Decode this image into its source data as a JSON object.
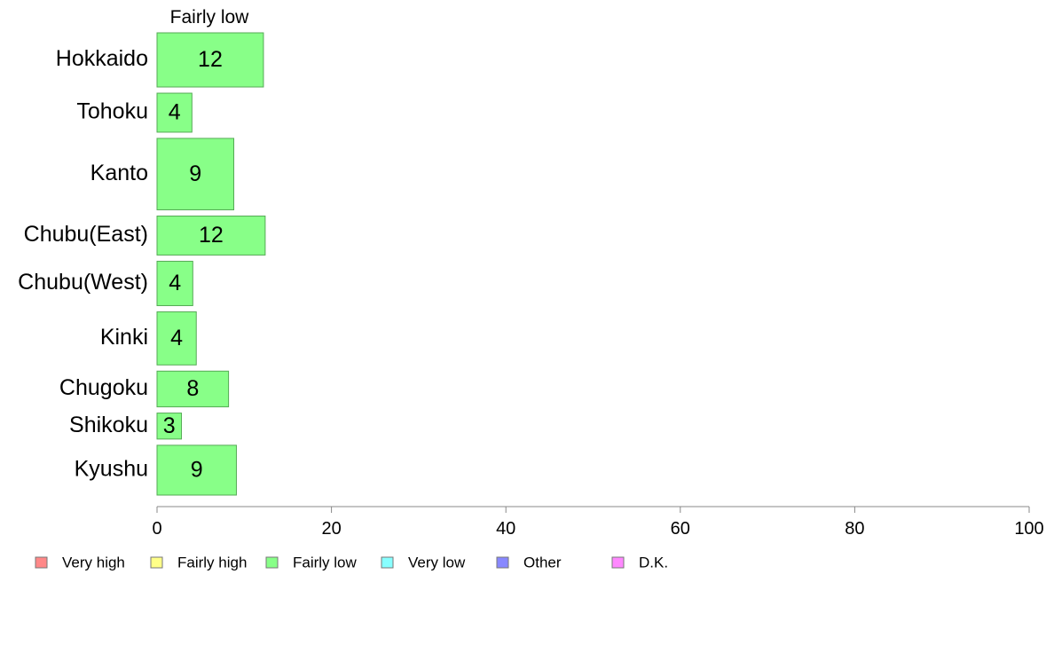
{
  "chart_data": {
    "type": "bar",
    "orientation": "horizontal",
    "stacked": true,
    "column_header": "Fairly low",
    "categories": [
      "Hokkaido",
      "Tohoku",
      "Kanto",
      "Chubu(East)",
      "Chubu(West)",
      "Kinki",
      "Chugoku",
      "Shikoku",
      "Kyushu"
    ],
    "category_weights": [
      1.0,
      0.72,
      1.32,
      0.72,
      0.82,
      0.98,
      0.66,
      0.48,
      0.92
    ],
    "series": [
      {
        "name": "Fairly low",
        "color": "#88ff88",
        "values": [
          12.2,
          4.0,
          8.8,
          12.4,
          4.1,
          4.5,
          8.2,
          2.8,
          9.1
        ],
        "labels": [
          "12",
          "4",
          "9",
          "12",
          "4",
          "4",
          "8",
          "3",
          "9"
        ]
      }
    ],
    "xlim": [
      0,
      100
    ],
    "xticks": [
      0,
      20,
      40,
      60,
      80,
      100
    ],
    "xtick_labels": [
      "0",
      "20",
      "40",
      "60",
      "80",
      "100"
    ],
    "grid": false,
    "legend_position": "bottom",
    "legend": [
      {
        "label": "Very high",
        "color": "#ff8888"
      },
      {
        "label": "Fairly high",
        "color": "#ffff88"
      },
      {
        "label": "Fairly low",
        "color": "#88ff88"
      },
      {
        "label": "Very low",
        "color": "#88ffff"
      },
      {
        "label": "Other",
        "color": "#8888ff"
      },
      {
        "label": "D.K.",
        "color": "#ff88ff"
      }
    ]
  }
}
